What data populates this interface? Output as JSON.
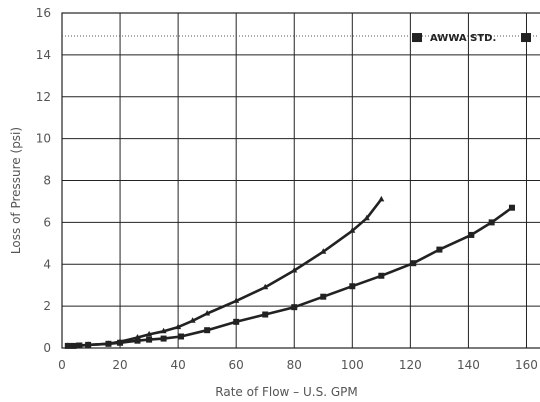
{
  "chart_data": {
    "type": "line",
    "title": "",
    "xlabel": "Rate of Flow – U.S. GPM",
    "ylabel": "Loss of Pressure (psi)",
    "xlim": [
      0,
      165
    ],
    "ylim": [
      0,
      16
    ],
    "xticks": [
      0,
      20,
      40,
      60,
      80,
      100,
      120,
      140,
      160
    ],
    "yticks": [
      0,
      2,
      4,
      6,
      8,
      10,
      12,
      14,
      16
    ],
    "grid": true,
    "series": [
      {
        "marker": "triangle",
        "color": "#222222",
        "x": [
          2,
          5,
          9,
          16,
          20,
          26,
          30,
          35,
          40,
          45,
          50,
          60,
          70,
          80,
          90,
          100,
          105,
          110
        ],
        "y": [
          0.1,
          0.1,
          0.15,
          0.2,
          0.3,
          0.5,
          0.65,
          0.8,
          1.0,
          1.3,
          1.65,
          2.25,
          2.9,
          3.7,
          4.6,
          5.6,
          6.2,
          7.1
        ]
      },
      {
        "marker": "square",
        "color": "#222222",
        "x": [
          2,
          4,
          6,
          9,
          16,
          20,
          26,
          30,
          35,
          41,
          50,
          60,
          70,
          80,
          90,
          100,
          110,
          121,
          130,
          141,
          148,
          155
        ],
        "y": [
          0.1,
          0.1,
          0.12,
          0.15,
          0.2,
          0.25,
          0.35,
          0.4,
          0.45,
          0.55,
          0.85,
          1.25,
          1.6,
          1.95,
          2.45,
          2.95,
          3.45,
          4.05,
          4.7,
          5.4,
          6.0,
          6.7
        ]
      }
    ],
    "reference_line": {
      "y": 14.9,
      "color": "#555555"
    },
    "legend": {
      "placement": "top-right",
      "label": "AWWA STD.",
      "marker": "square"
    }
  }
}
